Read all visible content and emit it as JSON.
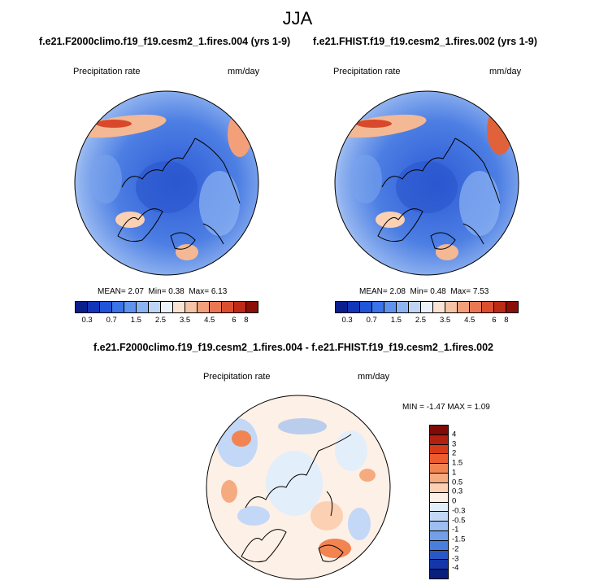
{
  "title": "JJA",
  "panels": [
    {
      "subtitle": "f.e21.F2000climo.f19_f19.cesm2_1.fires.004 (yrs 1-9)",
      "variable": "Precipitation rate",
      "units": "mm/day",
      "stats": {
        "mean_label": "MEAN=",
        "mean": "2.07",
        "min_label": "Min=",
        "min": "0.38",
        "max_label": "Max=",
        "max": "6.13"
      }
    },
    {
      "subtitle": "f.e21.FHIST.f19_f19.cesm2_1.fires.002 (yrs 1-9)",
      "variable": "Precipitation rate",
      "units": "mm/day",
      "stats": {
        "mean_label": "MEAN=",
        "mean": "2.08",
        "min_label": "Min=",
        "min": "0.48",
        "max_label": "Max=",
        "max": "7.53"
      }
    }
  ],
  "diff": {
    "subtitle": "f.e21.F2000climo.f19_f19.cesm2_1.fires.004 - f.e21.FHIST.f19_f19.cesm2_1.fires.002",
    "variable": "Precipitation rate",
    "units": "mm/day",
    "stats": "MIN =  -1.47 MAX =   1.09"
  },
  "colorbar_abs": {
    "colors": [
      "#0a1f8c",
      "#1236b8",
      "#1f55d6",
      "#3b73e8",
      "#5f93ee",
      "#8db4f2",
      "#bdd4f5",
      "#ecf2fa",
      "#fbe3d3",
      "#f7c3a6",
      "#f29f7a",
      "#ea7753",
      "#db4f30",
      "#bd2a16",
      "#8a0f07"
    ],
    "ticks": [
      "0.3",
      "0.7",
      "1.5",
      "2.5",
      "3.5",
      "4.5",
      "6",
      "8"
    ]
  },
  "colorbar_diff": {
    "colors": [
      "#7f0b06",
      "#b2200f",
      "#d73a18",
      "#ec5c2e",
      "#f28452",
      "#f6aa80",
      "#fbd0b3",
      "#fdf0e6",
      "#e3eefb",
      "#c3d8f6",
      "#9cbef0",
      "#739fe9",
      "#4a7ede",
      "#2858c8",
      "#1436a8",
      "#081f7c"
    ],
    "ticks": [
      "4",
      "3",
      "2",
      "1.5",
      "1",
      "0.5",
      "0.3",
      "0",
      "-0.3",
      "-0.5",
      "-1",
      "-1.5",
      "-2",
      "-3",
      "-4"
    ]
  },
  "map_colors": {
    "ocean_low": "#2f5fd8",
    "ocean_mid": "#6f9be9",
    "pale": "#dbe6f6",
    "warm": "#f4b894",
    "hot": "#e0623a",
    "neutral": "#fdf3ec",
    "coast": "#000000"
  }
}
